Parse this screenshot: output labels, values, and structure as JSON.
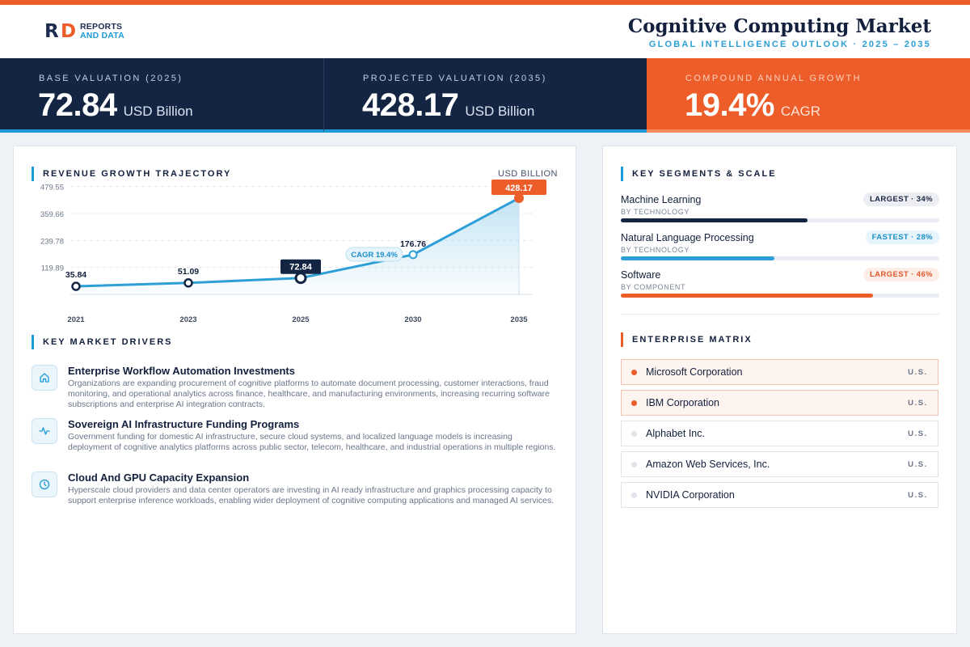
{
  "brand": {
    "logo_line1": "REPORTS",
    "logo_line2": "AND DATA",
    "mark_r": "R",
    "mark_d": "D"
  },
  "header": {
    "title": "Cognitive Computing Market",
    "subtitle": "GLOBAL INTELLIGENCE OUTLOOK · 2025 – 2035"
  },
  "kpis": [
    {
      "label": "BASE VALUATION (2025)",
      "value": "72.84",
      "unit": "USD Billion"
    },
    {
      "label": "PROJECTED VALUATION (2035)",
      "value": "428.17",
      "unit": "USD Billion"
    },
    {
      "label": "COMPOUND ANNUAL GROWTH",
      "value": "19.4%",
      "unit": "CAGR"
    }
  ],
  "chart_section": {
    "title": "REVENUE GROWTH TRAJECTORY",
    "unit": "USD BILLION"
  },
  "chart_data": {
    "type": "area",
    "title": "REVENUE GROWTH TRAJECTORY",
    "ylabel": "USD BILLION",
    "categories": [
      "2021",
      "2023",
      "2025",
      "2030",
      "2035"
    ],
    "values": [
      35.84,
      51.09,
      72.84,
      176.76,
      428.17
    ],
    "value_labels": [
      "35.84",
      "51.09",
      "72.84",
      "176.76",
      "428.17"
    ],
    "y_ticks": [
      119.89,
      239.78,
      359.66,
      479.55
    ],
    "y_tick_labels": [
      "119.89",
      "239.78",
      "359.66",
      "479.55"
    ],
    "annotation": "CAGR 19.4%",
    "grid": true,
    "colors": {
      "line": "#2e9fd6",
      "highlight": "#142544",
      "end": "#ec5d2a"
    }
  },
  "drivers_section": {
    "title": "KEY MARKET DRIVERS"
  },
  "drivers": [
    {
      "icon": "home-icon",
      "title": "Enterprise Workflow Automation Investments",
      "desc": "Organizations are expanding procurement of cognitive platforms to automate document processing, customer interactions, fraud monitoring, and operational analytics across finance, healthcare, and manufacturing environments, increasing recurring software subscriptions and enterprise AI integration contracts."
    },
    {
      "icon": "activity-icon",
      "title": "Sovereign AI Infrastructure Funding Programs",
      "desc": "Government funding for domestic AI infrastructure, secure cloud systems, and localized language models is increasing deployment of cognitive analytics platforms across public sector, telecom, healthcare, and industrial operations in multiple regions."
    },
    {
      "icon": "clock-icon",
      "title": "Cloud And GPU Capacity Expansion",
      "desc": "Hyperscale cloud providers and data center operators are investing in AI ready infrastructure and graphics processing capacity to support enterprise inference workloads, enabling wider deployment of cognitive computing applications and managed AI services."
    }
  ],
  "segments_section": {
    "title": "KEY SEGMENTS & SCALE"
  },
  "segments": [
    {
      "name": "Machine Learning",
      "category": "BY TECHNOLOGY",
      "badge": "LARGEST · 34%",
      "share": 0.34,
      "color": "#142544",
      "badge_bg": "#eceef3",
      "badge_fg": "#1a2540"
    },
    {
      "name": "Natural Language Processing",
      "category": "BY TECHNOLOGY",
      "badge": "FASTEST · 28%",
      "share": 0.28,
      "color": "#2e9fd6",
      "badge_bg": "#e6f4fb",
      "badge_fg": "#1d8fc8"
    },
    {
      "name": "Software",
      "category": "BY COMPONENT",
      "badge": "LARGEST · 46%",
      "share": 0.46,
      "color": "#ec5d2a",
      "badge_bg": "#fdeee7",
      "badge_fg": "#e0572a"
    }
  ],
  "matrix_section": {
    "title": "ENTERPRISE MATRIX"
  },
  "companies": [
    {
      "name": "Microsoft Corporation",
      "country": "U.S.",
      "highlight": true
    },
    {
      "name": "IBM Corporation",
      "country": "U.S.",
      "highlight": true
    },
    {
      "name": "Alphabet Inc.",
      "country": "U.S.",
      "highlight": false
    },
    {
      "name": "Amazon Web Services, Inc.",
      "country": "U.S.",
      "highlight": false
    },
    {
      "name": "NVIDIA Corporation",
      "country": "U.S.",
      "highlight": false
    }
  ]
}
